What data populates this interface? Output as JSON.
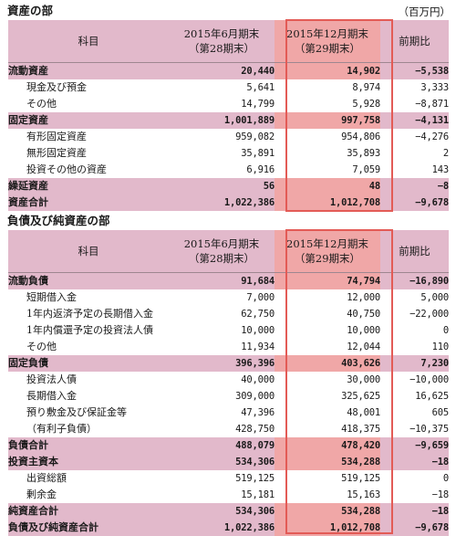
{
  "assets": {
    "title": "資産の部",
    "unit": "（百万円）",
    "header": {
      "label": "科目",
      "prev_line1": "2015年6月期末",
      "prev_line2": "（第28期末）",
      "curr_line1": "2015年12月期末",
      "curr_line2": "（第29期末）",
      "change": "前期比"
    },
    "rows": [
      {
        "label": "流動資産",
        "prev": "20,440",
        "curr": "14,902",
        "change": "−5,538",
        "major": true
      },
      {
        "label": "現金及び預金",
        "prev": "5,641",
        "curr": "8,974",
        "change": "3,333",
        "major": false
      },
      {
        "label": "その他",
        "prev": "14,799",
        "curr": "5,928",
        "change": "−8,871",
        "major": false
      },
      {
        "label": "固定資産",
        "prev": "1,001,889",
        "curr": "997,758",
        "change": "−4,131",
        "major": true
      },
      {
        "label": "有形固定資産",
        "prev": "959,082",
        "curr": "954,806",
        "change": "−4,276",
        "major": false
      },
      {
        "label": "無形固定資産",
        "prev": "35,891",
        "curr": "35,893",
        "change": "2",
        "major": false
      },
      {
        "label": "投資その他の資産",
        "prev": "6,916",
        "curr": "7,059",
        "change": "143",
        "major": false
      },
      {
        "label": "繰延資産",
        "prev": "56",
        "curr": "48",
        "change": "−8",
        "major": true
      },
      {
        "label": "資産合計",
        "prev": "1,022,386",
        "curr": "1,012,708",
        "change": "−9,678",
        "major": true
      }
    ]
  },
  "liabilities": {
    "title": "負債及び純資産の部",
    "header": {
      "label": "科目",
      "prev_line1": "2015年6月期末",
      "prev_line2": "（第28期末）",
      "curr_line1": "2015年12月期末",
      "curr_line2": "（第29期末）",
      "change": "前期比"
    },
    "rows": [
      {
        "label": "流動負債",
        "prev": "91,684",
        "curr": "74,794",
        "change": "−16,890",
        "major": true
      },
      {
        "label": "短期借入金",
        "prev": "7,000",
        "curr": "12,000",
        "change": "5,000",
        "major": false
      },
      {
        "label": "1年内返済予定の長期借入金",
        "prev": "62,750",
        "curr": "40,750",
        "change": "−22,000",
        "major": false
      },
      {
        "label": "1年内償還予定の投資法人債",
        "prev": "10,000",
        "curr": "10,000",
        "change": "0",
        "major": false
      },
      {
        "label": "その他",
        "prev": "11,934",
        "curr": "12,044",
        "change": "110",
        "major": false
      },
      {
        "label": "固定負債",
        "prev": "396,396",
        "curr": "403,626",
        "change": "7,230",
        "major": true
      },
      {
        "label": "投資法人債",
        "prev": "40,000",
        "curr": "30,000",
        "change": "−10,000",
        "major": false
      },
      {
        "label": "長期借入金",
        "prev": "309,000",
        "curr": "325,625",
        "change": "16,625",
        "major": false
      },
      {
        "label": "預り敷金及び保証金等",
        "prev": "47,396",
        "curr": "48,001",
        "change": "605",
        "major": false
      },
      {
        "label": "（有利子負債）",
        "prev": "428,750",
        "curr": "418,375",
        "change": "−10,375",
        "major": false
      },
      {
        "label": "負債合計",
        "prev": "488,079",
        "curr": "478,420",
        "change": "−9,659",
        "major": true
      },
      {
        "label": "投資主資本",
        "prev": "534,306",
        "curr": "534,288",
        "change": "−18",
        "major": true
      },
      {
        "label": "出資総額",
        "prev": "519,125",
        "curr": "519,125",
        "change": "0",
        "major": false
      },
      {
        "label": "剰余金",
        "prev": "15,181",
        "curr": "15,163",
        "change": "−18",
        "major": false
      },
      {
        "label": "純資産合計",
        "prev": "534,306",
        "curr": "534,288",
        "change": "−18",
        "major": true
      },
      {
        "label": "負債及び純資産合計",
        "prev": "1,022,386",
        "curr": "1,012,708",
        "change": "−9,678",
        "major": true
      }
    ]
  },
  "colors": {
    "header_bg": "#e2b9cb",
    "highlight_col_bg": "#f0a7a7",
    "highlight_border": "#e35b56"
  }
}
